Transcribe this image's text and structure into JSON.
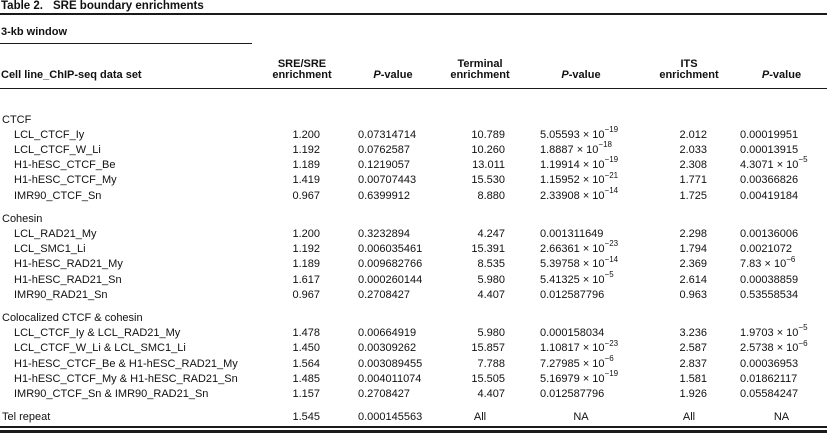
{
  "colors": {
    "background": "#ffffff",
    "text": "#111111",
    "rule": "#1a1a1a"
  },
  "table": {
    "label": "Table 2.",
    "title": "SRE boundary enrichments",
    "window_label": "3-kb window",
    "columns": [
      "Cell line_ChIP-seq data set",
      "SRE/SRE\nenrichment",
      "*P*-value",
      "Terminal\nenrichment",
      "*P*-value",
      "ITS\nenrichment",
      "*P*-value"
    ],
    "sections": [
      {
        "name": "CTCF",
        "rows": [
          {
            "label": "LCL_CTCF_Iy",
            "values": [
              "1.200",
              "0.07314714",
              "10.789",
              "5.05593 × 10^−19",
              "2.012",
              "0.00019951"
            ]
          },
          {
            "label": "LCL_CTCF_W_Li",
            "values": [
              "1.192",
              "0.0762587",
              "10.260",
              "1.8887 × 10^−18",
              "2.033",
              "0.00013915"
            ]
          },
          {
            "label": "H1-hESC_CTCF_Be",
            "values": [
              "1.189",
              "0.1219057",
              "13.011",
              "1.19914 × 10^−19",
              "2.308",
              "4.3071 × 10^−5"
            ]
          },
          {
            "label": "H1-hESC_CTCF_My",
            "values": [
              "1.419",
              "0.00707443",
              "15.530",
              "1.15952 × 10^−21",
              "1.771",
              "0.00366826"
            ]
          },
          {
            "label": "IMR90_CTCF_Sn",
            "values": [
              "0.967",
              "0.6399912",
              "8.880",
              "2.33908 × 10^−14",
              "1.725",
              "0.00419184"
            ]
          }
        ]
      },
      {
        "name": "Cohesin",
        "rows": [
          {
            "label": "LCL_RAD21_My",
            "values": [
              "1.200",
              "0.3232894",
              "4.247",
              "0.001311649",
              "2.298",
              "0.00136006"
            ]
          },
          {
            "label": "LCL_SMC1_Li",
            "values": [
              "1.192",
              "0.006035461",
              "15.391",
              "2.66361 × 10^−23",
              "1.794",
              "0.0021072"
            ]
          },
          {
            "label": "H1-hESC_RAD21_My",
            "values": [
              "1.189",
              "0.009682766",
              "8.535",
              "5.39758 × 10^−14",
              "2.369",
              "7.83 × 10^−6"
            ]
          },
          {
            "label": "H1-hESC_RAD21_Sn",
            "values": [
              "1.617",
              "0.000260144",
              "5.980",
              "5.41325 × 10^−5",
              "2.614",
              "0.00038859"
            ]
          },
          {
            "label": "IMR90_RAD21_Sn",
            "values": [
              "0.967",
              "0.2708427",
              "4.407",
              "0.012587796",
              "0.963",
              "0.53558534"
            ]
          }
        ]
      },
      {
        "name": "Colocalized CTCF & cohesin",
        "rows": [
          {
            "label": "LCL_CTCF_Iy & LCL_RAD21_My",
            "values": [
              "1.478",
              "0.00664919",
              "5.980",
              "0.000158034",
              "3.236",
              "1.9703 × 10^−5"
            ]
          },
          {
            "label": "LCL_CTCF_W_Li & LCL_SMC1_Li",
            "values": [
              "1.450",
              "0.00309262",
              "15.857",
              "1.10817 × 10^−23",
              "2.587",
              "2.5738 × 10^−6"
            ]
          },
          {
            "label": "H1-hESC_CTCF_Be & H1-hESC_RAD21_My",
            "values": [
              "1.564",
              "0.003089455",
              "7.788",
              "7.27985 × 10^−6",
              "2.837",
              "0.00036953"
            ]
          },
          {
            "label": "H1-hESC_CTCF_My & H1-hESC_RAD21_Sn",
            "values": [
              "1.485",
              "0.004011074",
              "15.505",
              "5.16979 × 10^−19",
              "1.581",
              "0.01862117"
            ]
          },
          {
            "label": "IMR90_CTCF_Sn & IMR90_RAD21_Sn",
            "values": [
              "1.157",
              "0.2708427",
              "4.407",
              "0.012587796",
              "1.926",
              "0.05584247"
            ]
          }
        ]
      },
      {
        "name": null,
        "rows": [
          {
            "label": "Tel repeat",
            "values": [
              "1.545",
              "0.000145563",
              "All",
              "NA",
              "All",
              "NA"
            ]
          }
        ]
      }
    ]
  }
}
